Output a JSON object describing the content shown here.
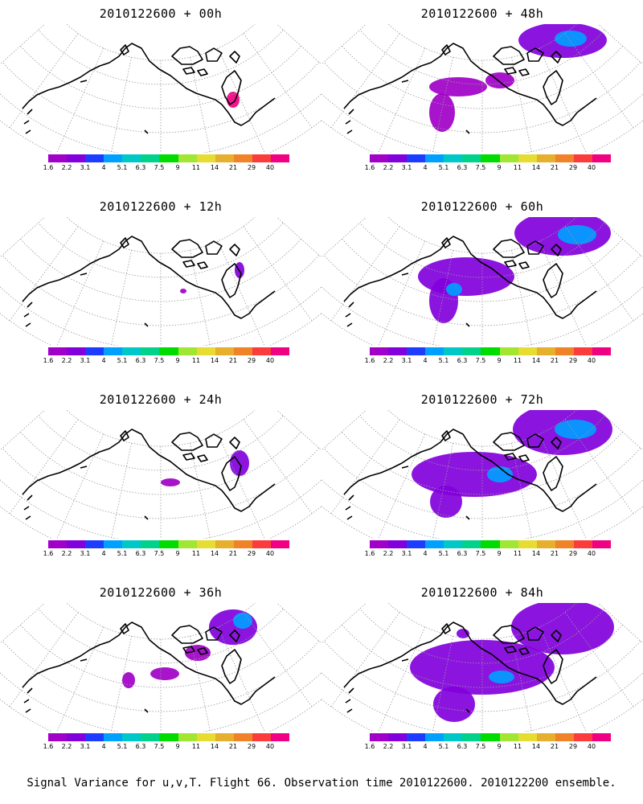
{
  "caption": "Signal Variance for u,v,T. Flight 66. Observation time 2010122600. 2010122200 ensemble.",
  "colorbar": {
    "labels": [
      "1.6",
      "2.2",
      "3.1",
      "4",
      "5.1",
      "6.3",
      "7.5",
      "9",
      "11",
      "14",
      "21",
      "29",
      "40"
    ],
    "colors": [
      "#a000c8",
      "#8200dc",
      "#1e3cff",
      "#00a0ff",
      "#00c8c8",
      "#00d28c",
      "#00dc00",
      "#a0e632",
      "#e6dc32",
      "#e6af2d",
      "#f08228",
      "#fa3c3c",
      "#f00082"
    ]
  },
  "panels": [
    {
      "title": "2010122600 + 00h",
      "lead_hours": 0,
      "extent": 0.05
    },
    {
      "title": "2010122600 + 12h",
      "lead_hours": 12,
      "extent": 0.12
    },
    {
      "title": "2010122600 + 24h",
      "lead_hours": 24,
      "extent": 0.2
    },
    {
      "title": "2010122600 + 36h",
      "lead_hours": 36,
      "extent": 0.35
    },
    {
      "title": "2010122600 + 48h",
      "lead_hours": 48,
      "extent": 0.55
    },
    {
      "title": "2010122600 + 60h",
      "lead_hours": 60,
      "extent": 0.7
    },
    {
      "title": "2010122600 + 72h",
      "lead_hours": 72,
      "extent": 0.82
    },
    {
      "title": "2010122600 + 84h",
      "lead_hours": 84,
      "extent": 0.95
    }
  ]
}
